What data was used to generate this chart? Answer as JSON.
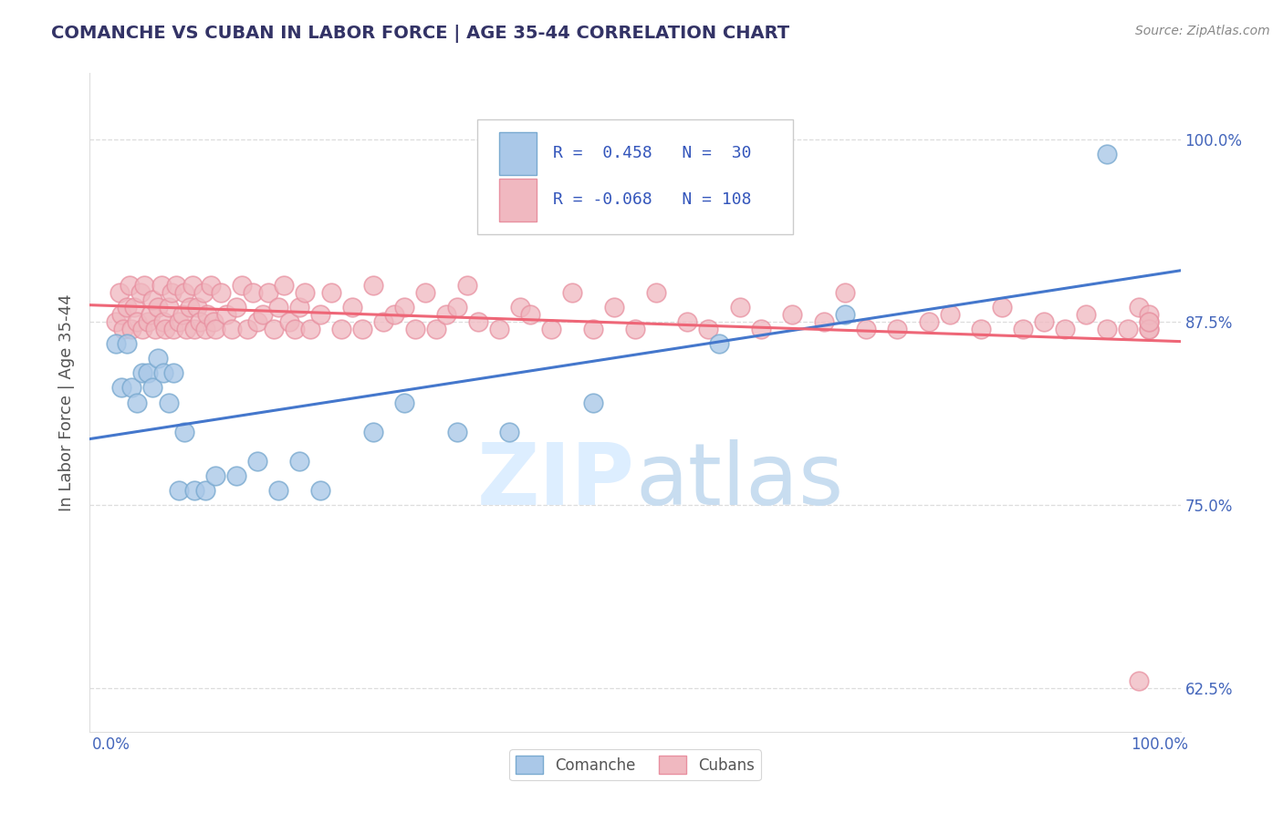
{
  "title": "COMANCHE VS CUBAN IN LABOR FORCE | AGE 35-44 CORRELATION CHART",
  "source_text": "Source: ZipAtlas.com",
  "xlabel": "",
  "ylabel": "In Labor Force | Age 35-44",
  "xlim": [
    -0.02,
    1.02
  ],
  "ylim": [
    0.595,
    1.045
  ],
  "yticks": [
    0.625,
    0.75,
    0.875,
    1.0
  ],
  "ytick_labels": [
    "62.5%",
    "75.0%",
    "87.5%",
    "100.0%"
  ],
  "xtick_labels": [
    "0.0%",
    "100.0%"
  ],
  "comanche_R": 0.458,
  "comanche_N": 30,
  "cuban_R": -0.068,
  "cuban_N": 108,
  "comanche_dot_color": "#aac8e8",
  "comanche_edge_color": "#7aaad0",
  "cuban_dot_color": "#f0b8c0",
  "cuban_edge_color": "#e890a0",
  "trend_comanche_color": "#4477cc",
  "trend_cuban_color": "#ee6677",
  "watermark_color": "#ddeeff",
  "legend_label_comanche": "Comanche",
  "legend_label_cuban": "Cubans",
  "comanche_x": [
    0.005,
    0.01,
    0.015,
    0.02,
    0.025,
    0.03,
    0.035,
    0.04,
    0.045,
    0.05,
    0.055,
    0.06,
    0.065,
    0.07,
    0.08,
    0.09,
    0.1,
    0.12,
    0.14,
    0.16,
    0.18,
    0.2,
    0.25,
    0.28,
    0.33,
    0.38,
    0.46,
    0.58,
    0.7,
    0.95
  ],
  "comanche_y": [
    0.86,
    0.83,
    0.86,
    0.83,
    0.82,
    0.84,
    0.84,
    0.83,
    0.85,
    0.84,
    0.82,
    0.84,
    0.76,
    0.8,
    0.76,
    0.76,
    0.77,
    0.77,
    0.78,
    0.76,
    0.78,
    0.76,
    0.8,
    0.82,
    0.8,
    0.8,
    0.82,
    0.86,
    0.88,
    0.99
  ],
  "cuban_x": [
    0.005,
    0.008,
    0.01,
    0.012,
    0.015,
    0.018,
    0.02,
    0.022,
    0.025,
    0.028,
    0.03,
    0.032,
    0.035,
    0.038,
    0.04,
    0.042,
    0.045,
    0.048,
    0.05,
    0.052,
    0.055,
    0.058,
    0.06,
    0.062,
    0.065,
    0.068,
    0.07,
    0.072,
    0.075,
    0.078,
    0.08,
    0.082,
    0.085,
    0.088,
    0.09,
    0.092,
    0.095,
    0.098,
    0.1,
    0.105,
    0.11,
    0.115,
    0.12,
    0.125,
    0.13,
    0.135,
    0.14,
    0.145,
    0.15,
    0.155,
    0.16,
    0.165,
    0.17,
    0.175,
    0.18,
    0.185,
    0.19,
    0.2,
    0.21,
    0.22,
    0.23,
    0.24,
    0.25,
    0.26,
    0.27,
    0.28,
    0.29,
    0.3,
    0.31,
    0.32,
    0.33,
    0.34,
    0.35,
    0.37,
    0.39,
    0.4,
    0.42,
    0.44,
    0.46,
    0.48,
    0.5,
    0.52,
    0.55,
    0.57,
    0.6,
    0.62,
    0.65,
    0.68,
    0.7,
    0.72,
    0.75,
    0.78,
    0.8,
    0.83,
    0.85,
    0.87,
    0.89,
    0.91,
    0.93,
    0.95,
    0.97,
    0.98,
    0.99,
    0.99,
    0.99,
    0.99,
    0.99,
    0.98
  ],
  "cuban_y": [
    0.875,
    0.895,
    0.88,
    0.87,
    0.885,
    0.9,
    0.87,
    0.885,
    0.875,
    0.895,
    0.87,
    0.9,
    0.875,
    0.88,
    0.89,
    0.87,
    0.885,
    0.9,
    0.875,
    0.87,
    0.885,
    0.895,
    0.87,
    0.9,
    0.875,
    0.88,
    0.895,
    0.87,
    0.885,
    0.9,
    0.87,
    0.885,
    0.875,
    0.895,
    0.87,
    0.88,
    0.9,
    0.875,
    0.87,
    0.895,
    0.88,
    0.87,
    0.885,
    0.9,
    0.87,
    0.895,
    0.875,
    0.88,
    0.895,
    0.87,
    0.885,
    0.9,
    0.875,
    0.87,
    0.885,
    0.895,
    0.87,
    0.88,
    0.895,
    0.87,
    0.885,
    0.87,
    0.9,
    0.875,
    0.88,
    0.885,
    0.87,
    0.895,
    0.87,
    0.88,
    0.885,
    0.9,
    0.875,
    0.87,
    0.885,
    0.88,
    0.87,
    0.895,
    0.87,
    0.885,
    0.87,
    0.895,
    0.875,
    0.87,
    0.885,
    0.87,
    0.88,
    0.875,
    0.895,
    0.87,
    0.87,
    0.875,
    0.88,
    0.87,
    0.885,
    0.87,
    0.875,
    0.87,
    0.88,
    0.87,
    0.87,
    0.885,
    0.87,
    0.875,
    0.88,
    0.87,
    0.875,
    0.63
  ],
  "background_color": "#ffffff",
  "grid_color": "#dddddd",
  "title_color": "#333366",
  "axis_label_color": "#555555",
  "tick_color": "#4466bb",
  "source_color": "#888888"
}
